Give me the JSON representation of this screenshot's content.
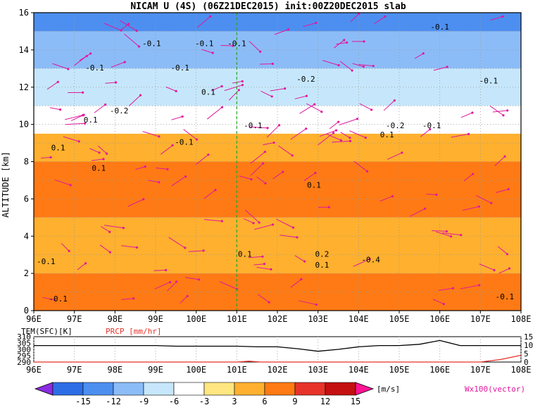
{
  "title": "NICAM U (4S) (06Z21DEC2015) init:00Z20DEC2015 slab",
  "chart_data": [
    {
      "type": "heatmap",
      "panel": "main",
      "variable": "U",
      "title": "NICAM U (4S) (06Z21DEC2015) init:00Z20DEC2015 slab",
      "xlabel": "",
      "ylabel": "ALTITUDE [km]",
      "x_ticks": [
        "96E",
        "97E",
        "98E",
        "99E",
        "100E",
        "101E",
        "102E",
        "103E",
        "104E",
        "105E",
        "106E",
        "107E",
        "108E"
      ],
      "y_ticks": [
        "0",
        "2",
        "4",
        "6",
        "8",
        "10",
        "12",
        "14",
        "16"
      ],
      "xlim": [
        96,
        108
      ],
      "ylim": [
        0,
        16
      ],
      "marker_line_x": 101,
      "shading_levels": [
        -15,
        -12,
        -9,
        -6,
        -3,
        3,
        6,
        9,
        12,
        15
      ],
      "shading_colors": [
        "#8b2be2",
        "#2d6ee6",
        "#4d8ff0",
        "#8cbcf7",
        "#c6e7fb",
        "#ffffff",
        "#ffe680",
        "#ffb02e",
        "#ff7a14",
        "#e8332a",
        "#c41010",
        "#ff1493"
      ],
      "bands": [
        {
          "alt_from": 15,
          "alt_to": 16,
          "u": -12
        },
        {
          "alt_from": 13,
          "alt_to": 15,
          "u": -9
        },
        {
          "alt_from": 11,
          "alt_to": 13,
          "u": -6
        },
        {
          "alt_from": 9.5,
          "alt_to": 11,
          "u": -3
        },
        {
          "alt_from": 8,
          "alt_to": 9.5,
          "u": 6
        },
        {
          "alt_from": 5,
          "alt_to": 8,
          "u": 9
        },
        {
          "alt_from": 2,
          "alt_to": 5,
          "u": 6
        },
        {
          "alt_from": 0,
          "alt_to": 2,
          "u": 9
        }
      ],
      "contour_labels": [
        "-0.1",
        "-0.1",
        "-0.1",
        "-0.1",
        "-0.1",
        "-0.2",
        "-0.1",
        "0.1",
        "-0.1",
        "-0.1",
        "-0.2",
        "0.1",
        "-0.2",
        "-0.1",
        "0.1",
        "-0.1",
        "0.1",
        "0.1",
        "0.1",
        "0.2",
        "0.1",
        "-0.4",
        "-0.1",
        "-0.1",
        "-0.1",
        "0.1"
      ],
      "vector_label": "Wx100(vector)",
      "vector_color": "#e0189c"
    },
    {
      "type": "line",
      "panel": "bottom",
      "title": "",
      "series": [
        {
          "name": "TEM(SFC)[K]",
          "color": "#000000",
          "x": [
            96,
            96.5,
            97,
            97.5,
            98,
            98.5,
            99,
            99.5,
            100,
            100.5,
            101,
            101.5,
            102,
            102.5,
            103,
            103.5,
            104,
            104.5,
            105,
            105.5,
            106,
            106.5,
            107,
            107.5,
            108
          ],
          "y": [
            303,
            303,
            303,
            303,
            303,
            303,
            303,
            302.5,
            302.5,
            302.5,
            302.5,
            302,
            302,
            300.5,
            298.5,
            300,
            302,
            303,
            303,
            304,
            307,
            303,
            303,
            303,
            303
          ]
        },
        {
          "name": "PRCP [mm/hr]",
          "color": "#e8332a",
          "x": [
            96,
            97,
            98,
            99,
            100,
            101,
            101.3,
            101.6,
            102,
            103,
            104,
            105,
            106,
            107,
            107.5,
            108
          ],
          "y": [
            0,
            0,
            0,
            0,
            0,
            0,
            0.5,
            0,
            0,
            0,
            0,
            0,
            0,
            0,
            1.5,
            4
          ]
        }
      ],
      "y_ticks_left": [
        "290",
        "295",
        "300",
        "305",
        "310"
      ],
      "y_ticks_right": [
        "0",
        "5",
        "10",
        "15"
      ],
      "ylim_left": [
        290,
        310
      ],
      "ylim_right": [
        0,
        15
      ],
      "xlim": [
        96,
        108
      ],
      "x_ticks": [
        "96E",
        "97E",
        "98E",
        "99E",
        "100E",
        "101E",
        "102E",
        "103E",
        "104E",
        "105E",
        "106E",
        "107E",
        "108E"
      ]
    }
  ],
  "colorbar": {
    "labels": [
      "-15",
      "-12",
      "-9",
      "-6",
      "-3",
      "3",
      "6",
      "9",
      "12",
      "15"
    ],
    "unit": "[m/s]"
  }
}
